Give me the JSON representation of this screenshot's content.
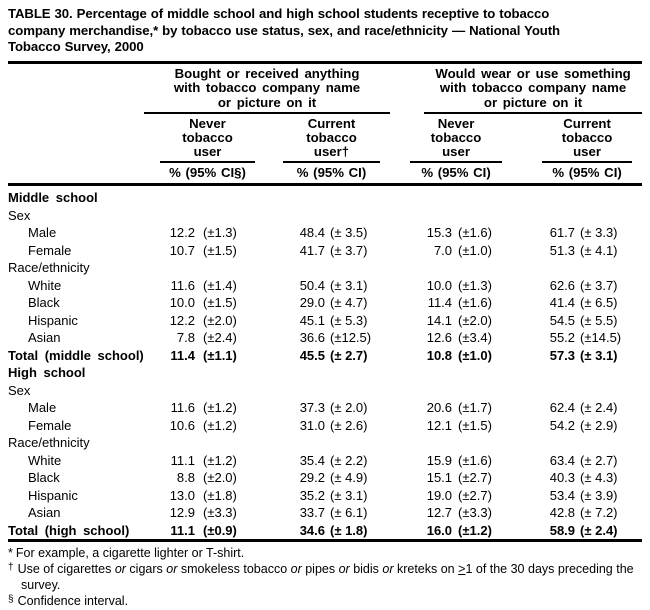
{
  "page": {
    "background": "#ffffff",
    "text_color": "#000000"
  },
  "title": "TABLE 30. Percentage of middle school and high school students receptive to tobacco\ncompany merchandise,* by tobacco use status, sex, and race/ethnicity — National Youth\nTobacco Survey, 2000",
  "table": {
    "column_groups": [
      {
        "label": "Bought or received anything\nwith tobacco company name\nor picture on it",
        "subcolumns": [
          {
            "label": "Never\ntobacco\nuser",
            "measure": "% (95% CI§)"
          },
          {
            "label": "Current\ntobacco\nuser†",
            "measure": "% (95% CI)"
          }
        ]
      },
      {
        "label": "Would wear or use something\nwith tobacco company name\nor picture on it",
        "subcolumns": [
          {
            "label": "Never\ntobacco\nuser",
            "measure": "% (95% CI)"
          },
          {
            "label": "Current\ntobacco\nuser",
            "measure": "% (95% CI)"
          }
        ]
      }
    ],
    "rows": [
      {
        "label": "Middle school",
        "type": "sec",
        "indent": 0,
        "values": []
      },
      {
        "label": "Sex",
        "type": "sub",
        "indent": 0,
        "values": []
      },
      {
        "label": "Male",
        "type": "data",
        "indent": 1,
        "values": [
          "12.2",
          "(±1.3)",
          "48.4",
          "(± 3.5)",
          "15.3",
          "(±1.6)",
          "61.7",
          "(± 3.3)"
        ]
      },
      {
        "label": "Female",
        "type": "data",
        "indent": 1,
        "values": [
          "10.7",
          "(±1.5)",
          "41.7",
          "(± 3.7)",
          "7.0",
          "(±1.0)",
          "51.3",
          "(± 4.1)"
        ]
      },
      {
        "label": "Race/ethnicity",
        "type": "sub",
        "indent": 0,
        "values": []
      },
      {
        "label": "White",
        "type": "data",
        "indent": 1,
        "values": [
          "11.6",
          "(±1.4)",
          "50.4",
          "(± 3.1)",
          "10.0",
          "(±1.3)",
          "62.6",
          "(± 3.7)"
        ]
      },
      {
        "label": "Black",
        "type": "data",
        "indent": 1,
        "values": [
          "10.0",
          "(±1.5)",
          "29.0",
          "(± 4.7)",
          "11.4",
          "(±1.6)",
          "41.4",
          "(± 6.5)"
        ]
      },
      {
        "label": "Hispanic",
        "type": "data",
        "indent": 1,
        "values": [
          "12.2",
          "(±2.0)",
          "45.1",
          "(± 5.3)",
          "14.1",
          "(±2.0)",
          "54.5",
          "(± 5.5)"
        ]
      },
      {
        "label": "Asian",
        "type": "data",
        "indent": 1,
        "values": [
          "7.8",
          "(±2.4)",
          "36.6",
          "(±12.5)",
          "12.6",
          "(±3.4)",
          "55.2",
          "(±14.5)"
        ]
      },
      {
        "label": "Total (middle school)",
        "type": "total",
        "indent": 0,
        "values": [
          "11.4",
          "(±1.1)",
          "45.5",
          "(± 2.7)",
          "10.8",
          "(±1.0)",
          "57.3",
          "(± 3.1)"
        ]
      },
      {
        "label": "High school",
        "type": "sec",
        "indent": 0,
        "values": []
      },
      {
        "label": "Sex",
        "type": "sub",
        "indent": 0,
        "values": []
      },
      {
        "label": "Male",
        "type": "data",
        "indent": 1,
        "values": [
          "11.6",
          "(±1.2)",
          "37.3",
          "(± 2.0)",
          "20.6",
          "(±1.7)",
          "62.4",
          "(± 2.4)"
        ]
      },
      {
        "label": "Female",
        "type": "data",
        "indent": 1,
        "values": [
          "10.6",
          "(±1.2)",
          "31.0",
          "(± 2.6)",
          "12.1",
          "(±1.5)",
          "54.2",
          "(± 2.9)"
        ]
      },
      {
        "label": "Race/ethnicity",
        "type": "sub",
        "indent": 0,
        "values": []
      },
      {
        "label": "White",
        "type": "data",
        "indent": 1,
        "values": [
          "11.1",
          "(±1.2)",
          "35.4",
          "(± 2.2)",
          "15.9",
          "(±1.6)",
          "63.4",
          "(± 2.7)"
        ]
      },
      {
        "label": "Black",
        "type": "data",
        "indent": 1,
        "values": [
          "8.8",
          "(±2.0)",
          "29.2",
          "(± 4.9)",
          "15.1",
          "(±2.7)",
          "40.3",
          "(± 4.3)"
        ]
      },
      {
        "label": "Hispanic",
        "type": "data",
        "indent": 1,
        "values": [
          "13.0",
          "(±1.8)",
          "35.2",
          "(± 3.1)",
          "19.0",
          "(±2.7)",
          "53.4",
          "(± 3.9)"
        ]
      },
      {
        "label": "Asian",
        "type": "data",
        "indent": 1,
        "values": [
          "12.9",
          "(±3.3)",
          "33.7",
          "(± 6.1)",
          "12.7",
          "(±3.3)",
          "42.8",
          "(± 7.2)"
        ]
      },
      {
        "label": "Total (high school)",
        "type": "total",
        "indent": 0,
        "values": [
          "11.1",
          "(±0.9)",
          "34.6",
          "(± 1.8)",
          "16.0",
          "(±1.2)",
          "58.9",
          "(± 2.4)"
        ]
      }
    ]
  },
  "footnotes": [
    {
      "marker": "*",
      "sup": false,
      "segments": [
        {
          "text": "For example, a cigarette lighter or T-shirt."
        }
      ]
    },
    {
      "marker": "†",
      "sup": true,
      "segments": [
        {
          "text": "Use of cigarettes "
        },
        {
          "text": "or",
          "italic": true
        },
        {
          "text": " cigars "
        },
        {
          "text": "or",
          "italic": true
        },
        {
          "text": " smokeless tobacco "
        },
        {
          "text": "or",
          "italic": true
        },
        {
          "text": " pipes "
        },
        {
          "text": "or",
          "italic": true
        },
        {
          "text": " bidis "
        },
        {
          "text": "or",
          "italic": true
        },
        {
          "text": " kreteks on "
        },
        {
          "text": ">",
          "underline": true
        },
        {
          "text": "1 of the 30 days preceding the survey."
        }
      ]
    },
    {
      "marker": "§",
      "sup": true,
      "segments": [
        {
          "text": "Confidence interval."
        }
      ]
    }
  ]
}
